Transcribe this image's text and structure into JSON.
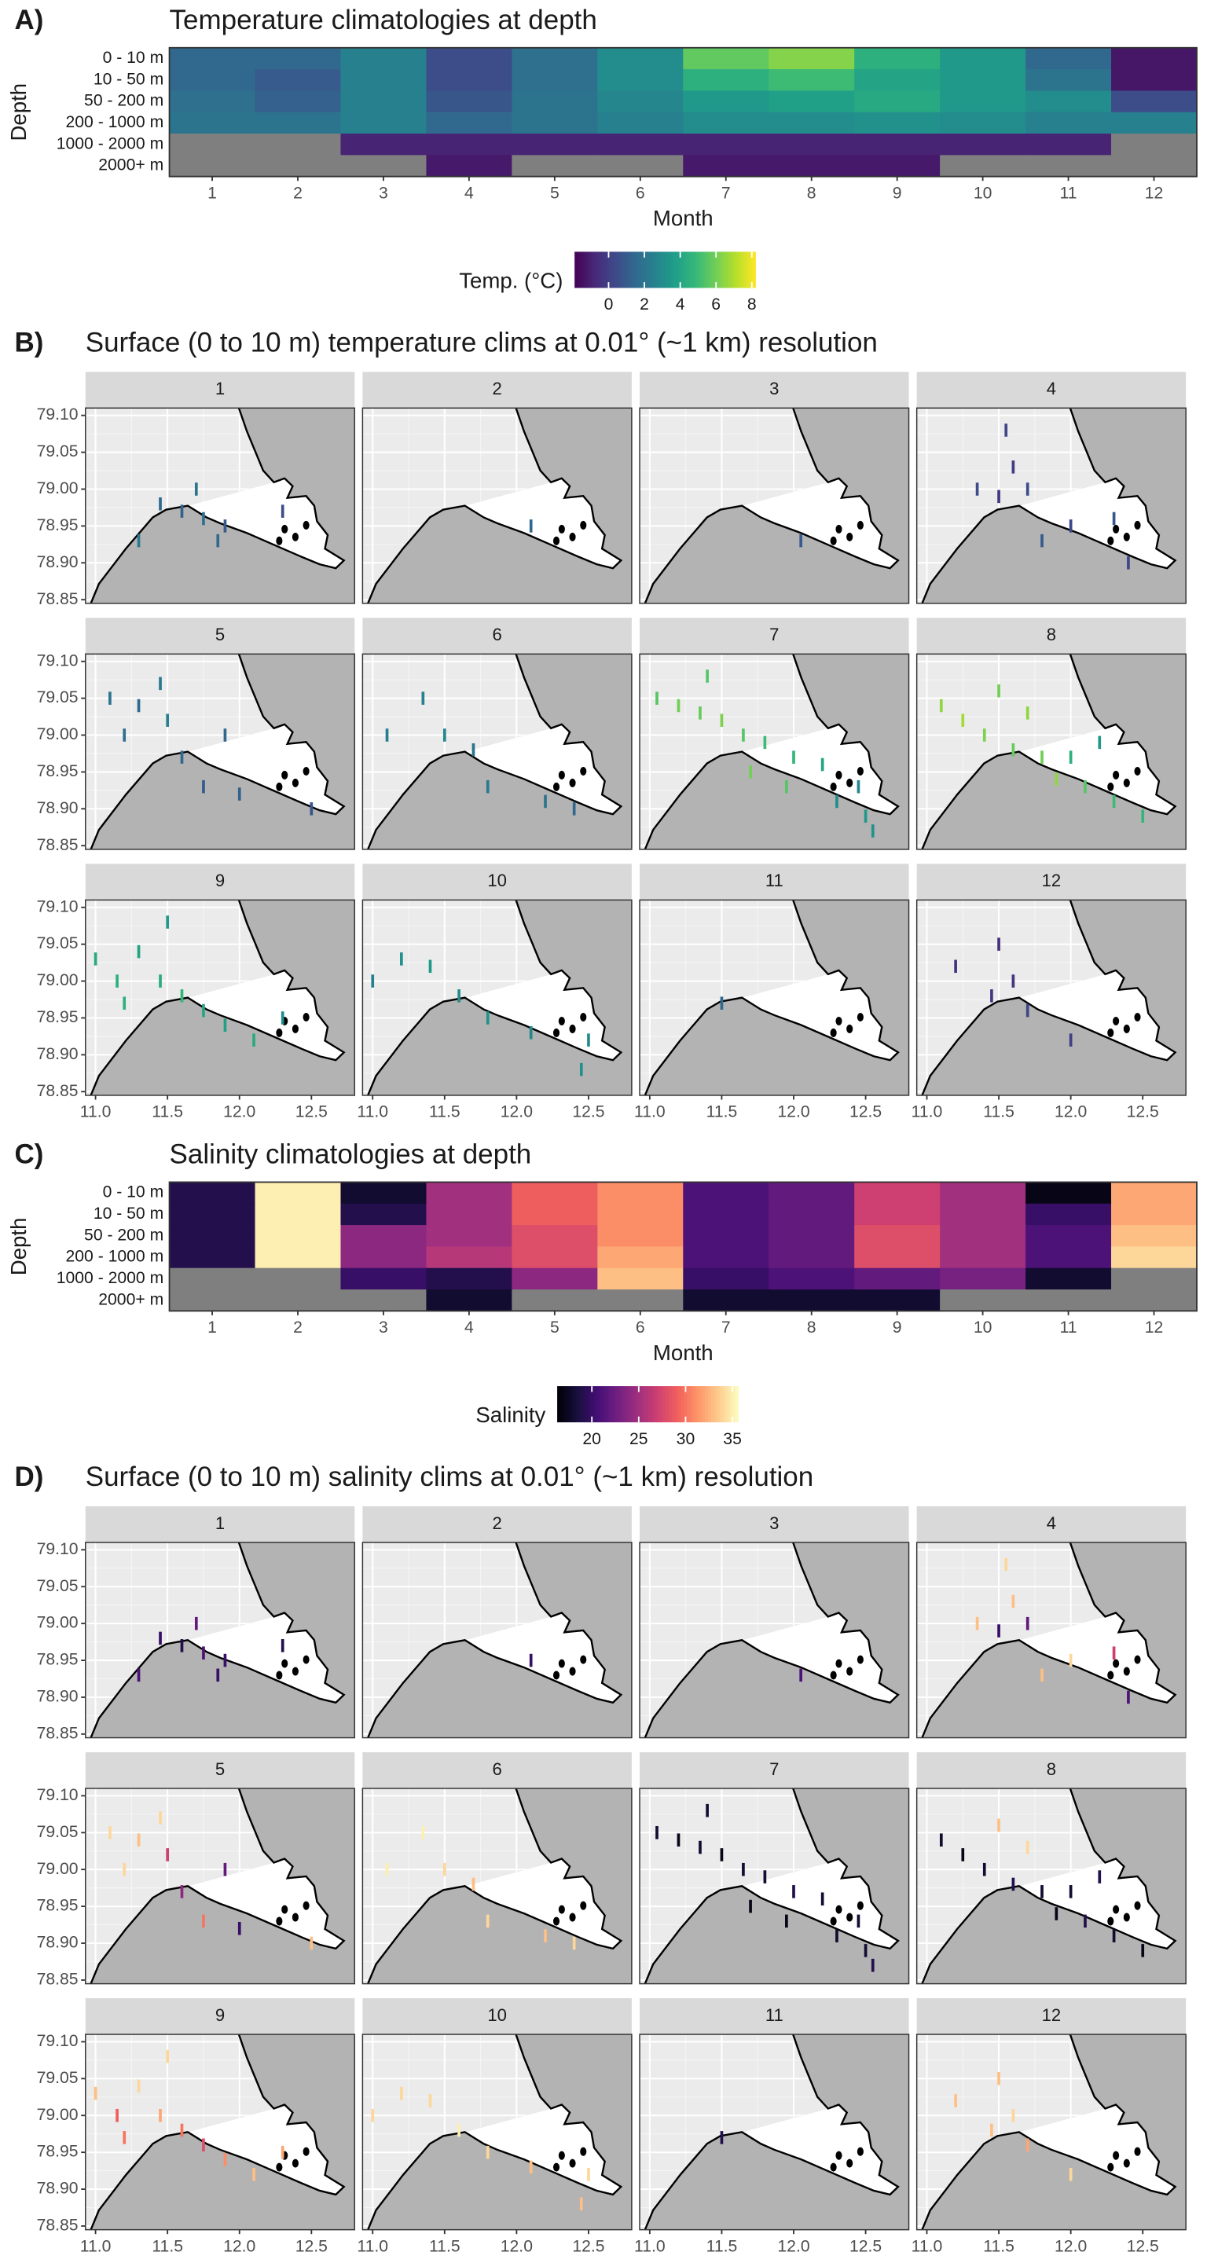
{
  "chart_data": [
    {
      "type": "heatmap",
      "panel_label": "A)",
      "title": "Temperature climatologies at depth",
      "x_label": "Month",
      "y_label": "Depth",
      "categories": [
        "1",
        "2",
        "3",
        "4",
        "5",
        "6",
        "7",
        "8",
        "9",
        "10",
        "11",
        "12"
      ],
      "rows": [
        "0 - 10 m",
        "10 - 50 m",
        "50 - 200 m",
        "200 - 1000 m",
        "1000 - 2000 m",
        "2000+ m"
      ],
      "values": [
        [
          1.5,
          1.5,
          2.5,
          0.5,
          1.8,
          3,
          5.7,
          6.3,
          4.5,
          3.5,
          1.5,
          -1.3
        ],
        [
          1.5,
          1,
          2.5,
          0.5,
          1.8,
          3,
          4.5,
          5,
          4,
          3.5,
          2,
          -1.3
        ],
        [
          1.8,
          1.2,
          2.5,
          0.8,
          2,
          2.8,
          3.5,
          3.8,
          4.2,
          3.5,
          3,
          0.5
        ],
        [
          2,
          2,
          2.5,
          1.5,
          2,
          2.5,
          3,
          3,
          3.2,
          3,
          2.5,
          2.5
        ],
        [
          null,
          null,
          -0.9,
          -0.9,
          -0.9,
          -0.9,
          -0.9,
          -0.9,
          -0.9,
          -0.9,
          -0.9,
          null
        ],
        [
          null,
          null,
          null,
          -1.2,
          null,
          null,
          -1.2,
          -1.2,
          -1.2,
          null,
          null,
          null
        ]
      ],
      "colorbar_title": "Temp. (°C)",
      "colormap": "viridis",
      "clim": [
        -1.9,
        8.2
      ],
      "cticks": [
        0,
        2,
        4,
        6,
        8
      ],
      "na_color": "#7f7f7f"
    },
    {
      "type": "facet-map",
      "panel_label": "B)",
      "title": "Surface (0 to 10 m) temperature clims at 0.01° (~1 km) resolution",
      "colormap": "viridis",
      "clim": [
        -1.9,
        8.2
      ],
      "xlim": [
        10.93,
        12.8
      ],
      "ylim": [
        78.845,
        79.11
      ],
      "xticks": [
        {
          "value": 11.0,
          "label": "11.0"
        },
        11.5,
        {
          "value": 12.0,
          "label": "12.0"
        },
        12.5
      ],
      "yticks": [
        78.85,
        {
          "value": 78.9,
          "label": "78.90"
        },
        78.95,
        {
          "value": 79.0,
          "label": "79.00"
        },
        79.05,
        {
          "value": 79.1,
          "label": "79.10"
        }
      ],
      "facets": [
        {
          "label": "1",
          "lon": [
            11.45,
            11.6,
            11.75,
            11.9,
            11.7,
            12.3,
            11.3,
            11.85
          ],
          "lat": [
            78.98,
            78.97,
            78.96,
            78.95,
            79.0,
            78.97,
            78.93,
            78.93
          ],
          "values": [
            1.5,
            1.2,
            1.8,
            1.0,
            2.0,
            0.5,
            2.2,
            1.5
          ]
        },
        {
          "label": "2",
          "lon": [
            12.1
          ],
          "lat": [
            78.95
          ],
          "values": [
            1.5
          ]
        },
        {
          "label": "3",
          "lon": [
            12.05
          ],
          "lat": [
            78.93
          ],
          "values": [
            1.0
          ]
        },
        {
          "label": "4",
          "lon": [
            11.55,
            11.6,
            11.7,
            11.5,
            12.0,
            12.3,
            11.8,
            12.4,
            11.35
          ],
          "lat": [
            79.08,
            79.03,
            79.0,
            78.99,
            78.95,
            78.96,
            78.93,
            78.9,
            79.0
          ],
          "values": [
            0.2,
            0.0,
            0.5,
            -0.3,
            0.3,
            0.8,
            1.0,
            0.2,
            0.4
          ]
        },
        {
          "label": "5",
          "lon": [
            11.1,
            11.3,
            11.5,
            11.2,
            11.6,
            11.75,
            12.0,
            12.5,
            11.45,
            11.9
          ],
          "lat": [
            79.05,
            79.04,
            79.02,
            79.0,
            78.97,
            78.93,
            78.92,
            78.9,
            79.07,
            79.0
          ],
          "values": [
            2.0,
            1.5,
            2.5,
            1.8,
            1.5,
            1.0,
            1.2,
            0.8,
            2.2,
            1.5
          ]
        },
        {
          "label": "6",
          "lon": [
            11.35,
            11.5,
            11.7,
            11.8,
            12.2,
            11.1,
            12.4
          ],
          "lat": [
            79.05,
            79.0,
            78.98,
            78.93,
            78.91,
            79.0,
            78.9
          ],
          "values": [
            2.5,
            2.8,
            2.0,
            2.2,
            2.0,
            2.5,
            1.5
          ]
        },
        {
          "label": "7",
          "lon": [
            11.05,
            11.2,
            11.35,
            11.5,
            11.65,
            11.8,
            12.0,
            12.2,
            11.95,
            12.3,
            12.5,
            11.7,
            11.4,
            12.45,
            12.55
          ],
          "lat": [
            79.05,
            79.04,
            79.03,
            79.02,
            79.0,
            78.99,
            78.97,
            78.96,
            78.93,
            78.91,
            78.89,
            78.95,
            79.08,
            78.93,
            78.87
          ],
          "values": [
            5.5,
            6,
            5.8,
            6.2,
            5.5,
            5.0,
            4.8,
            4.0,
            5.5,
            3.0,
            3.5,
            6,
            5.5,
            2.8,
            3.2
          ]
        },
        {
          "label": "8",
          "lon": [
            11.1,
            11.25,
            11.4,
            11.5,
            11.6,
            11.8,
            11.9,
            12.1,
            12.3,
            12.5,
            11.7,
            12.0,
            12.2
          ],
          "lat": [
            79.04,
            79.02,
            79.0,
            79.06,
            78.98,
            78.97,
            78.94,
            78.93,
            78.91,
            78.89,
            79.03,
            78.97,
            78.99
          ],
          "values": [
            6.5,
            6.8,
            6.2,
            6.0,
            5.8,
            6.0,
            6.5,
            5.5,
            5.0,
            4.8,
            6.5,
            4.5,
            3.5
          ]
        },
        {
          "label": "9",
          "lon": [
            11.0,
            11.15,
            11.3,
            11.45,
            11.6,
            11.75,
            11.9,
            12.1,
            11.5,
            12.3,
            11.2
          ],
          "lat": [
            79.03,
            79.0,
            79.04,
            79.0,
            78.98,
            78.96,
            78.94,
            78.92,
            79.08,
            78.95,
            78.97
          ],
          "values": [
            4.2,
            4.5,
            4.0,
            4.3,
            4.8,
            4.0,
            3.8,
            4.2,
            3.5,
            3.0,
            4.5
          ]
        },
        {
          "label": "10",
          "lon": [
            11.2,
            11.4,
            11.6,
            11.8,
            12.1,
            12.5,
            11.0,
            12.45
          ],
          "lat": [
            79.03,
            79.02,
            78.98,
            78.95,
            78.93,
            78.92,
            79.0,
            78.88
          ],
          "values": [
            3.2,
            3.5,
            3.0,
            3.2,
            2.8,
            3.0,
            2.5,
            3.2
          ]
        },
        {
          "label": "11",
          "lon": [
            11.5
          ],
          "lat": [
            78.97
          ],
          "values": [
            1.5
          ]
        },
        {
          "label": "12",
          "lon": [
            11.5,
            11.6,
            11.45,
            12.0,
            11.2,
            11.7
          ],
          "lat": [
            79.05,
            79.0,
            78.98,
            78.92,
            79.02,
            78.96
          ],
          "values": [
            -0.5,
            -0.3,
            -0.2,
            0.0,
            -0.4,
            0.2
          ]
        }
      ]
    },
    {
      "type": "heatmap",
      "panel_label": "C)",
      "title": "Salinity climatologies at depth",
      "x_label": "Month",
      "y_label": "Depth",
      "categories": [
        "1",
        "2",
        "3",
        "4",
        "5",
        "6",
        "7",
        "8",
        "9",
        "10",
        "11",
        "12"
      ],
      "rows": [
        "0 - 10 m",
        "10 - 50 m",
        "50 - 200 m",
        "200 - 1000 m",
        "1000 - 2000 m",
        "2000+ m"
      ],
      "values": [
        [
          19,
          35,
          18,
          25,
          29,
          31,
          21,
          22,
          27,
          25,
          17,
          32
        ],
        [
          19,
          35,
          19,
          25,
          29,
          31,
          21,
          22,
          27,
          25,
          20,
          32
        ],
        [
          19,
          35,
          24,
          25,
          28,
          31,
          21,
          22,
          28,
          25,
          21,
          33
        ],
        [
          19,
          35,
          24,
          26,
          28,
          32,
          21,
          22,
          28,
          25,
          21,
          34
        ],
        [
          null,
          null,
          20,
          19,
          24,
          33,
          20,
          21,
          22,
          23,
          18,
          null
        ],
        [
          null,
          null,
          null,
          18,
          null,
          null,
          18,
          18,
          18,
          null,
          null,
          null
        ]
      ],
      "colorbar_title": "Salinity",
      "colormap": "magma",
      "clim": [
        16.3,
        35.6
      ],
      "cticks": [
        20,
        25,
        30,
        35
      ],
      "na_color": "#7f7f7f"
    },
    {
      "type": "facet-map",
      "panel_label": "D)",
      "title": "Surface (0 to 10 m) salinity clims at 0.01° (~1 km) resolution",
      "colormap": "magma",
      "clim": [
        16.3,
        35.6
      ],
      "xlim": [
        10.93,
        12.8
      ],
      "ylim": [
        78.845,
        79.11
      ],
      "xticks": [
        {
          "value": 11.0,
          "label": "11.0"
        },
        11.5,
        {
          "value": 12.0,
          "label": "12.0"
        },
        12.5
      ],
      "yticks": [
        78.85,
        {
          "value": 78.9,
          "label": "78.90"
        },
        78.95,
        {
          "value": 79.0,
          "label": "79.00"
        },
        79.05,
        {
          "value": 79.1,
          "label": "79.10"
        }
      ],
      "facets": [
        {
          "label": "1",
          "lon": [
            11.45,
            11.6,
            11.75,
            11.9,
            11.7,
            12.3,
            11.3,
            11.85
          ],
          "lat": [
            78.98,
            78.97,
            78.96,
            78.95,
            79.0,
            78.97,
            78.93,
            78.93
          ],
          "values": [
            20,
            19,
            21,
            20,
            22,
            19,
            21,
            20
          ]
        },
        {
          "label": "2",
          "lon": [
            12.1
          ],
          "lat": [
            78.95
          ],
          "values": [
            20
          ]
        },
        {
          "label": "3",
          "lon": [
            12.05
          ],
          "lat": [
            78.93
          ],
          "values": [
            21
          ]
        },
        {
          "label": "4",
          "lon": [
            11.55,
            11.6,
            11.7,
            11.5,
            12.0,
            12.3,
            11.8,
            12.4,
            11.35
          ],
          "lat": [
            79.08,
            79.03,
            79.0,
            78.99,
            78.95,
            78.96,
            78.93,
            78.9,
            79.0
          ],
          "values": [
            34,
            33,
            22,
            20,
            34,
            27,
            33,
            21,
            33
          ]
        },
        {
          "label": "5",
          "lon": [
            11.1,
            11.3,
            11.5,
            11.2,
            11.6,
            11.75,
            12.0,
            12.5,
            11.45,
            11.9
          ],
          "lat": [
            79.05,
            79.04,
            79.02,
            79.0,
            78.97,
            78.93,
            78.92,
            78.9,
            79.07,
            79.0
          ],
          "values": [
            34,
            33,
            27,
            34,
            24,
            30,
            20,
            33,
            34,
            22
          ]
        },
        {
          "label": "6",
          "lon": [
            11.35,
            11.5,
            11.7,
            11.8,
            12.2,
            11.1,
            12.4
          ],
          "lat": [
            79.05,
            79.0,
            78.98,
            78.93,
            78.91,
            79.0,
            78.9
          ],
          "values": [
            35,
            34,
            33,
            34,
            33,
            35,
            34
          ]
        },
        {
          "label": "7",
          "lon": [
            11.05,
            11.2,
            11.35,
            11.5,
            11.65,
            11.8,
            12.0,
            12.2,
            11.95,
            12.3,
            12.5,
            11.7,
            11.4,
            12.45,
            12.55
          ],
          "lat": [
            79.05,
            79.04,
            79.03,
            79.02,
            79.0,
            78.99,
            78.97,
            78.96,
            78.93,
            78.91,
            78.89,
            78.95,
            79.08,
            78.93,
            78.87
          ],
          "values": [
            18,
            17,
            18,
            17,
            18,
            18,
            19,
            18,
            17,
            18,
            18,
            17,
            18,
            18,
            19
          ]
        },
        {
          "label": "8",
          "lon": [
            11.1,
            11.25,
            11.4,
            11.5,
            11.6,
            11.8,
            11.9,
            12.1,
            12.3,
            12.5,
            11.7,
            12.0,
            12.2
          ],
          "lat": [
            79.04,
            79.02,
            79.0,
            79.06,
            78.98,
            78.97,
            78.94,
            78.93,
            78.91,
            78.89,
            79.03,
            78.97,
            78.99
          ],
          "values": [
            18,
            17,
            18,
            33,
            19,
            18,
            17,
            19,
            18,
            17,
            34,
            18,
            19
          ]
        },
        {
          "label": "9",
          "lon": [
            11.0,
            11.15,
            11.3,
            11.45,
            11.6,
            11.75,
            11.9,
            12.1,
            11.5,
            12.3,
            11.2
          ],
          "lat": [
            79.03,
            79.0,
            79.04,
            79.0,
            78.98,
            78.96,
            78.94,
            78.92,
            79.08,
            78.95,
            78.97
          ],
          "values": [
            33,
            29,
            34,
            32,
            30,
            28,
            31,
            33,
            34,
            32,
            30
          ]
        },
        {
          "label": "10",
          "lon": [
            11.2,
            11.4,
            11.6,
            11.8,
            12.1,
            12.5,
            11.0,
            12.45
          ],
          "lat": [
            79.03,
            79.02,
            78.98,
            78.95,
            78.93,
            78.92,
            79.0,
            78.88
          ],
          "values": [
            34,
            34,
            35,
            34,
            33,
            34,
            34,
            33
          ]
        },
        {
          "label": "11",
          "lon": [
            11.5
          ],
          "lat": [
            78.97
          ],
          "values": [
            19
          ]
        },
        {
          "label": "12",
          "lon": [
            11.5,
            11.6,
            11.45,
            12.0,
            11.2,
            11.7
          ],
          "lat": [
            79.05,
            79.0,
            78.98,
            78.92,
            79.02,
            78.96
          ],
          "values": [
            33,
            34,
            33,
            34,
            33,
            32
          ]
        }
      ]
    }
  ]
}
